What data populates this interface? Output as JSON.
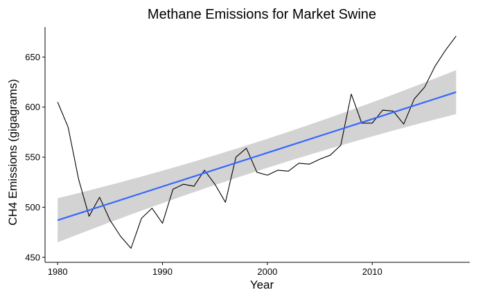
{
  "chart_data": {
    "type": "line",
    "title": "Methane Emissions for Market Swine",
    "xlabel": "Year",
    "ylabel": "CH4 Emissions (gigagrams)",
    "xlim": [
      1978.8,
      2019.3
    ],
    "ylim": [
      445,
      680
    ],
    "x_ticks": [
      1980,
      1990,
      2000,
      2010
    ],
    "y_ticks": [
      450,
      500,
      550,
      600,
      650
    ],
    "grid": false,
    "legend": "none",
    "series": [
      {
        "kind": "line",
        "color": "#000000",
        "x": [
          1980,
          1981,
          1982,
          1983,
          1984,
          1985,
          1986,
          1987,
          1988,
          1989,
          1990,
          1991,
          1992,
          1993,
          1994,
          1995,
          1996,
          1997,
          1998,
          1999,
          2000,
          2001,
          2002,
          2003,
          2004,
          2005,
          2006,
          2007,
          2008,
          2009,
          2010,
          2011,
          2012,
          2013,
          2014,
          2015,
          2016,
          2017,
          2018
        ],
        "y": [
          605,
          580,
          528,
          491,
          510,
          487,
          471,
          459,
          489,
          499,
          484,
          518,
          523,
          521,
          537,
          523,
          505,
          550,
          559,
          535,
          532,
          537,
          536,
          544,
          543,
          548,
          552,
          562,
          613,
          584,
          584,
          597,
          596,
          583,
          608,
          620,
          641,
          657,
          671
        ]
      }
    ],
    "trend": {
      "kind": "linear-fit",
      "color": "#3366FF",
      "band_color": "#D3D3D3",
      "x": [
        1980,
        2018
      ],
      "y": [
        487,
        615
      ],
      "ci_lower": [
        465,
        593
      ],
      "ci_upper": [
        509,
        637
      ],
      "ci_mid": {
        "x": 1999,
        "lower": 543,
        "upper": 557
      }
    }
  }
}
